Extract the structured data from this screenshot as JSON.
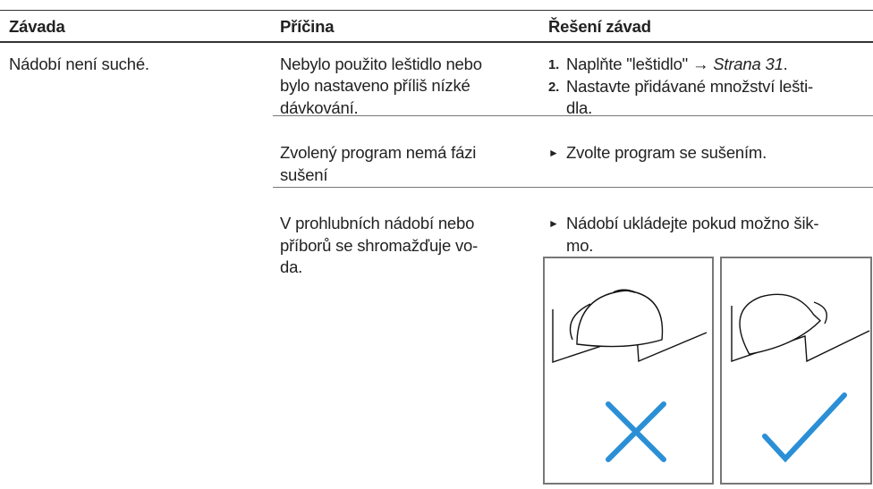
{
  "table": {
    "headers": [
      "Závada",
      "Příčina",
      "Řešení závad"
    ],
    "rows": [
      {
        "fault": [
          "Nádobí není suché."
        ],
        "causes": [
          {
            "cause": [
              "Nebylo použito leštidlo nebo",
              "bylo nastaveno příliš nízké",
              "dávkování."
            ],
            "solution": [
              {
                "marker": "1.",
                "text": "Naplňte \"leštidlo\" →",
                "link": "Strana 31",
                "end": "."
              },
              {
                "marker": "2.",
                "lines": [
                  "Nastavte přidávané množství lešti-",
                  "dla."
                ]
              }
            ]
          },
          {
            "cause": [
              "Zvolený program nemá fázi",
              "sušení"
            ],
            "solution": [
              {
                "marker": "►",
                "lines": [
                  "Zvolte program se sušením."
                ]
              }
            ]
          },
          {
            "cause": [
              "V prohlubních nádobí nebo",
              "příborů se shromažďuje vo-",
              "da."
            ],
            "solution": [
              {
                "marker": "►",
                "lines": [
                  "Nádobí ukládejte pokud možno šik-",
                  "mo."
                ]
              }
            ]
          }
        ]
      }
    ]
  }
}
